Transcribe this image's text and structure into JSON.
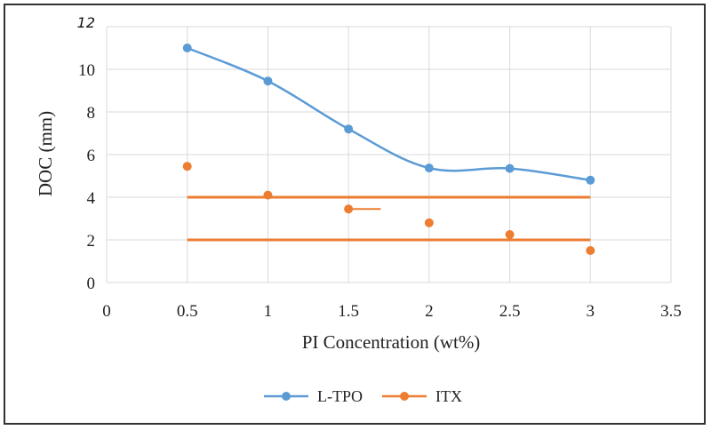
{
  "chart_data": {
    "type": "scatter",
    "title": "",
    "xlabel": "PI Concentration (wt%)",
    "ylabel": "DOC (mm)",
    "xlim": [
      0,
      3.5
    ],
    "ylim": [
      0,
      12
    ],
    "x_ticks": [
      "0",
      "0.5",
      "1",
      "1.5",
      "2",
      "2.5",
      "3",
      "3.5"
    ],
    "y_ticks": [
      "0",
      "2",
      "4",
      "6",
      "8",
      "10",
      "12"
    ],
    "grid": true,
    "legend_position": "bottom",
    "series": [
      {
        "name": "L-TPO",
        "color": "#5b9bd5",
        "style": "smooth-line-with-markers",
        "x": [
          0.5,
          1,
          1.5,
          2,
          2.5,
          3
        ],
        "y": [
          11.0,
          9.45,
          7.2,
          5.37,
          5.35,
          4.8
        ]
      },
      {
        "name": "ITX",
        "color": "#ed7d31",
        "style": "markers",
        "x": [
          0.5,
          1,
          1.5,
          2,
          2.5,
          3
        ],
        "y": [
          5.45,
          4.1,
          3.45,
          2.8,
          2.25,
          1.5
        ]
      }
    ],
    "annotations": [
      {
        "type": "hline",
        "color": "#ed7d31",
        "y": 4.0,
        "x_from": 0.5,
        "x_to": 3
      },
      {
        "type": "hline",
        "color": "#ed7d31",
        "y": 2.0,
        "x_from": 0.5,
        "x_to": 3
      },
      {
        "type": "segment",
        "color": "#ed7d31",
        "y": 3.45,
        "x_from": 1.5,
        "x_to": 1.7
      }
    ]
  }
}
